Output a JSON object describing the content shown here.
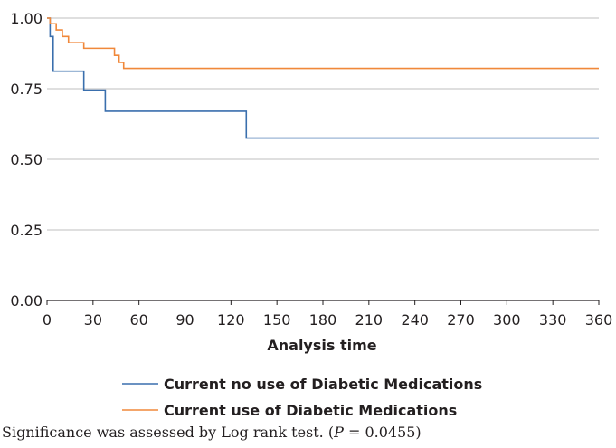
{
  "chart_data": {
    "type": "line",
    "xlabel": "Analysis time",
    "ylabel": "",
    "xlim": [
      0,
      360
    ],
    "ylim": [
      0,
      1
    ],
    "x_ticks": [
      "0",
      "30",
      "60",
      "90",
      "120",
      "150",
      "180",
      "210",
      "240",
      "270",
      "300",
      "330",
      "360"
    ],
    "y_ticks": [
      "0.00",
      "0.25",
      "0.50",
      "0.75",
      "1.00"
    ],
    "grid": "horizontal",
    "legend_position": "bottom",
    "series": [
      {
        "name": "Current no use of Diabetic Medications",
        "color": "#3a6fad",
        "step_x": [
          0,
          2,
          4,
          24,
          38,
          130,
          360
        ],
        "step_y": [
          1.0,
          0.935,
          0.812,
          0.745,
          0.67,
          0.575,
          0.575
        ]
      },
      {
        "name": "Current use of Diabetic Medications",
        "color": "#f0883a",
        "step_x": [
          0,
          2,
          6,
          10,
          14,
          24,
          44,
          47,
          50,
          360
        ],
        "step_y": [
          1.0,
          0.98,
          0.958,
          0.935,
          0.913,
          0.893,
          0.868,
          0.843,
          0.822,
          0.822
        ]
      }
    ]
  },
  "caption": {
    "text_before": "Significance was assessed by Log rank test. (",
    "p_symbol": "P",
    "text_after": " = 0.0455)"
  }
}
